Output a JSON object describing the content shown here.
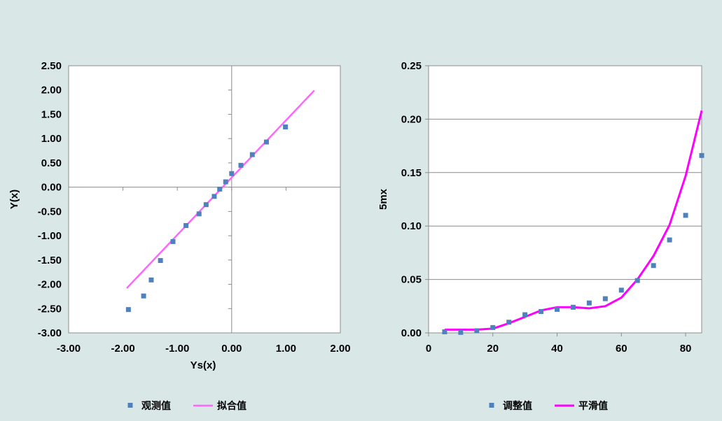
{
  "colors": {
    "background": "#d9e7e7",
    "plot_area": "#ffffff",
    "marker": "#4f81bd",
    "left_line": "#ff66ff",
    "right_line": "#ff00ff"
  },
  "chart_data": [
    {
      "type": "scatter",
      "xlabel": "Ys(x)",
      "ylabel": "Y(x)",
      "xlim": [
        -3.0,
        2.0
      ],
      "ylim": [
        -3.0,
        2.5
      ],
      "xticks": [
        "-3.00",
        "-2.00",
        "-1.00",
        "0.00",
        "1.00",
        "2.00"
      ],
      "yticks": [
        "2.50",
        "2.00",
        "1.50",
        "1.00",
        "0.50",
        "0.00",
        "-0.50",
        "-1.00",
        "-1.50",
        "-2.00",
        "-2.50",
        "-3.00"
      ],
      "grid": false,
      "legend_position": "bottom",
      "series": [
        {
          "name": "观测值",
          "kind": "markers",
          "x": [
            -1.9,
            -1.62,
            -1.48,
            -1.31,
            -1.08,
            -0.84,
            -0.6,
            -0.47,
            -0.32,
            -0.22,
            -0.11,
            0.0,
            0.17,
            0.38,
            0.64,
            0.99
          ],
          "y": [
            -2.52,
            -2.24,
            -1.91,
            -1.51,
            -1.12,
            -0.79,
            -0.55,
            -0.36,
            -0.19,
            -0.04,
            0.11,
            0.28,
            0.45,
            0.67,
            0.93,
            1.24
          ]
        },
        {
          "name": "拟合值",
          "kind": "line",
          "x": [
            -1.93,
            1.52
          ],
          "y": [
            -2.08,
            1.99
          ]
        }
      ]
    },
    {
      "type": "scatter",
      "xlabel": "",
      "ylabel": "5mx",
      "xlim": [
        0,
        85
      ],
      "ylim": [
        0,
        0.25
      ],
      "xticks": [
        "0",
        "20",
        "40",
        "60",
        "80"
      ],
      "yticks": [
        "0.25",
        "0.20",
        "0.15",
        "0.10",
        "0.05",
        "0.00"
      ],
      "grid": true,
      "legend_position": "bottom",
      "series": [
        {
          "name": "调整值",
          "kind": "markers",
          "x": [
            5,
            10,
            15,
            20,
            25,
            30,
            35,
            40,
            45,
            50,
            55,
            60,
            65,
            70,
            75,
            80,
            85
          ],
          "y": [
            0.001,
            0.0005,
            0.002,
            0.005,
            0.01,
            0.017,
            0.02,
            0.022,
            0.024,
            0.028,
            0.032,
            0.04,
            0.049,
            0.063,
            0.087,
            0.11,
            0.166
          ]
        },
        {
          "name": "平滑值",
          "kind": "line",
          "x": [
            5,
            10,
            15,
            20,
            25,
            30,
            35,
            40,
            45,
            50,
            55,
            60,
            65,
            70,
            75,
            80,
            85
          ],
          "y": [
            0.003,
            0.003,
            0.003,
            0.004,
            0.009,
            0.015,
            0.021,
            0.024,
            0.024,
            0.023,
            0.025,
            0.033,
            0.05,
            0.072,
            0.101,
            0.147,
            0.208
          ]
        }
      ]
    }
  ]
}
